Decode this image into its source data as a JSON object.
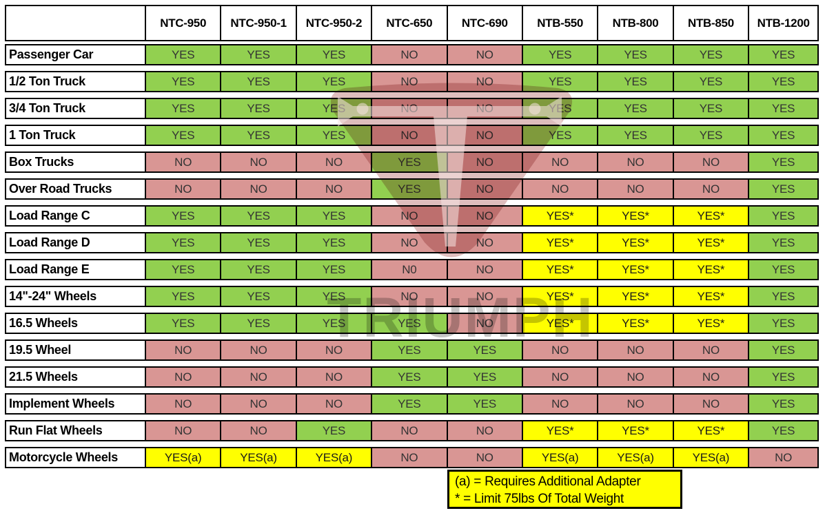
{
  "chart_data": {
    "type": "table",
    "columns": [
      "NTC-950",
      "NTC-950-1",
      "NTC-950-2",
      "NTC-650",
      "NTC-690",
      "NTB-550",
      "NTB-800",
      "NTB-850",
      "NTB-1200"
    ],
    "rows": [
      {
        "label": "Passenger Car",
        "values": [
          "YES",
          "YES",
          "YES",
          "NO",
          "NO",
          "YES",
          "YES",
          "YES",
          "YES"
        ]
      },
      {
        "label": "1/2 Ton Truck",
        "values": [
          "YES",
          "YES",
          "YES",
          "NO",
          "NO",
          "YES",
          "YES",
          "YES",
          "YES"
        ]
      },
      {
        "label": "3/4 Ton Truck",
        "values": [
          "YES",
          "YES",
          "YES",
          "NO",
          "NO",
          "YES",
          "YES",
          "YES",
          "YES"
        ]
      },
      {
        "label": "1 Ton Truck",
        "values": [
          "YES",
          "YES",
          "YES",
          "NO",
          "NO",
          "YES",
          "YES",
          "YES",
          "YES"
        ]
      },
      {
        "label": "Box Trucks",
        "values": [
          "NO",
          "NO",
          "NO",
          "YES",
          "NO",
          "NO",
          "NO",
          "NO",
          "YES"
        ]
      },
      {
        "label": "Over Road Trucks",
        "values": [
          "NO",
          "NO",
          "NO",
          "YES",
          "NO",
          "NO",
          "NO",
          "NO",
          "YES"
        ]
      },
      {
        "label": "Load Range C",
        "values": [
          "YES",
          "YES",
          "YES",
          "NO",
          "NO",
          "YES*",
          "YES*",
          "YES*",
          "YES"
        ]
      },
      {
        "label": "Load Range D",
        "values": [
          "YES",
          "YES",
          "YES",
          "NO",
          "NO",
          "YES*",
          "YES*",
          "YES*",
          "YES"
        ]
      },
      {
        "label": "Load Range E",
        "values": [
          "YES",
          "YES",
          "YES",
          "N0",
          "NO",
          "YES*",
          "YES*",
          "YES*",
          "YES"
        ]
      },
      {
        "label": "14\"-24\" Wheels",
        "values": [
          "YES",
          "YES",
          "YES",
          "NO",
          "NO",
          "YES*",
          "YES*",
          "YES*",
          "YES"
        ]
      },
      {
        "label": "16.5 Wheels",
        "values": [
          "YES",
          "YES",
          "YES",
          "YES",
          "NO",
          "YES*",
          "YES*",
          "YES*",
          "YES"
        ]
      },
      {
        "label": "19.5 Wheel",
        "values": [
          "NO",
          "NO",
          "NO",
          "YES",
          "YES",
          "NO",
          "NO",
          "NO",
          "YES"
        ]
      },
      {
        "label": "21.5 Wheels",
        "values": [
          "NO",
          "NO",
          "NO",
          "YES",
          "YES",
          "NO",
          "NO",
          "NO",
          "YES"
        ]
      },
      {
        "label": "Implement Wheels",
        "values": [
          "NO",
          "NO",
          "NO",
          "YES",
          "YES",
          "NO",
          "NO",
          "NO",
          "YES"
        ]
      },
      {
        "label": "Run Flat Wheels",
        "values": [
          "NO",
          "NO",
          "YES",
          "NO",
          "NO",
          "YES*",
          "YES*",
          "YES*",
          "YES"
        ]
      },
      {
        "label": "Motorcycle Wheels",
        "values": [
          "YES(a)",
          "YES(a)",
          "YES(a)",
          "NO",
          "NO",
          "YES(a)",
          "YES(a)",
          "YES(a)",
          "NO"
        ]
      }
    ],
    "legend": {
      "line1": "(a) = Requires Additional Adapter",
      "line2": "* = Limit 75lbs Of Total Weight"
    },
    "color_coding": {
      "YES": "green - compatible",
      "NO": "red - not compatible",
      "YES* / YES(a)": "yellow - compatible with condition"
    }
  },
  "colors": {
    "green": "#92d050",
    "red": "#d99694",
    "yellow": "#ffff00",
    "legend_bg": "#ffff00",
    "border": "#000000",
    "value_text": "#333333"
  },
  "watermark": {
    "wordmark": "TRIUMPH",
    "logo": "triumph-shield-t-logo"
  }
}
